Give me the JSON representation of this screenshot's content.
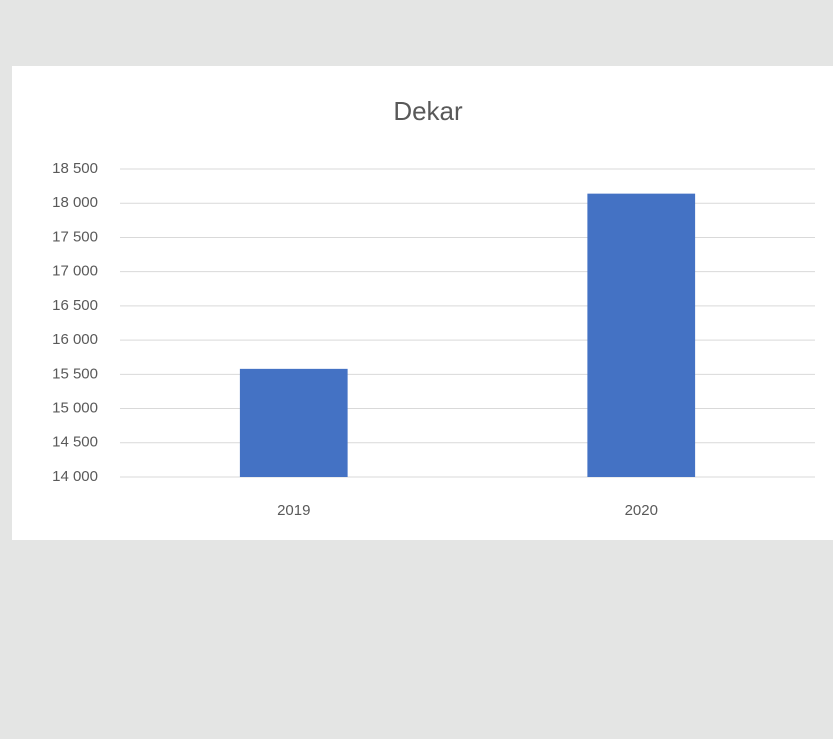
{
  "chart_data": {
    "type": "bar",
    "title": "Dekar",
    "categories": [
      "2019",
      "2020"
    ],
    "values": [
      15580,
      18140
    ],
    "color": "#4472c4",
    "ylim": [
      14000,
      18500
    ],
    "yticks": [
      {
        "value": 14000,
        "label": "14 000"
      },
      {
        "value": 14500,
        "label": "14 500"
      },
      {
        "value": 15000,
        "label": "15 000"
      },
      {
        "value": 15500,
        "label": "15 500"
      },
      {
        "value": 16000,
        "label": "16 000"
      },
      {
        "value": 16500,
        "label": "16 500"
      },
      {
        "value": 17000,
        "label": "17 000"
      },
      {
        "value": 17500,
        "label": "17 500"
      },
      {
        "value": 18000,
        "label": "18 000"
      },
      {
        "value": 18500,
        "label": "18 500"
      }
    ],
    "grid": true
  }
}
